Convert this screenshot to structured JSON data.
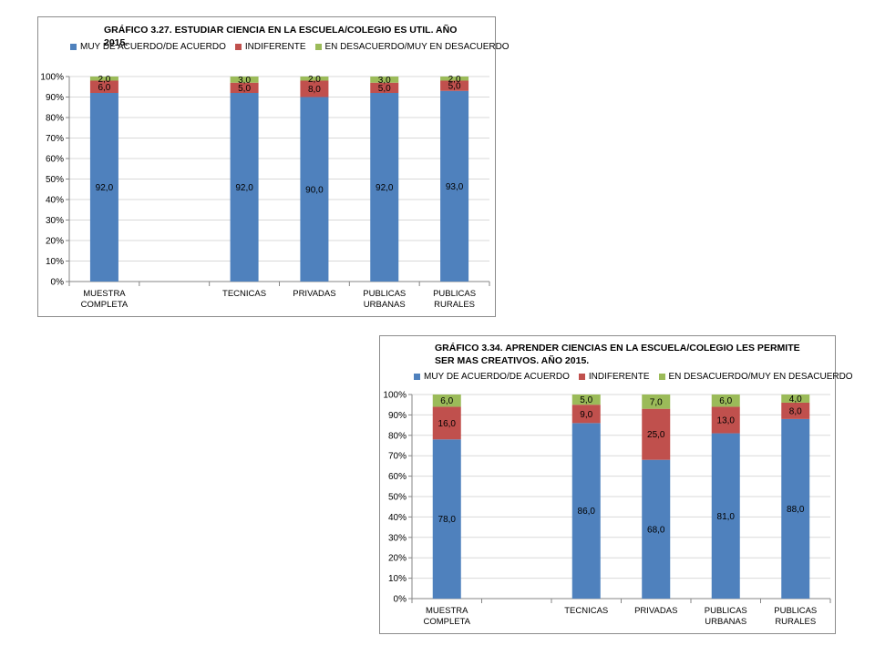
{
  "colors": {
    "muy_de_acuerdo": "#4f81bd",
    "indiferente": "#c0504d",
    "en_desacuerdo": "#9bbb59",
    "grid": "#d9d9d9",
    "axis": "#868686"
  },
  "chart_data": [
    {
      "type": "bar",
      "stacked": true,
      "title": "GRÁFICO 3.27. ESTUDIAR CIENCIA EN LA ESCUELA/COLEGIO ES UTIL. AÑO 2015.",
      "categories": [
        "MUESTRA COMPLETA",
        "",
        "TECNICAS",
        "PRIVADAS",
        "PUBLICAS URBANAS",
        "PUBLICAS RURALES"
      ],
      "series": [
        {
          "name": "MUY DE ACUERDO/DE ACUERDO",
          "values": [
            92,
            null,
            92,
            90,
            92,
            93
          ],
          "labels": [
            "92,0",
            "",
            "92,0",
            "90,0",
            "92,0",
            "93,0"
          ]
        },
        {
          "name": "INDIFERENTE",
          "values": [
            6,
            null,
            5,
            8,
            5,
            5
          ],
          "labels": [
            "6,0",
            "",
            "5,0",
            "8,0",
            "5,0",
            "5,0"
          ]
        },
        {
          "name": "EN DESACUERDO/MUY EN DESACUERDO",
          "values": [
            2,
            null,
            3,
            2,
            3,
            2
          ],
          "labels": [
            "2,0",
            "",
            "3,0",
            "2,0",
            "3,0",
            "2,0"
          ]
        }
      ],
      "yticks": [
        "0%",
        "10%",
        "20%",
        "30%",
        "40%",
        "50%",
        "60%",
        "70%",
        "80%",
        "90%",
        "100%"
      ],
      "ylim": [
        0,
        100
      ],
      "legend": "top"
    },
    {
      "type": "bar",
      "stacked": true,
      "title": "GRÁFICO 3.34. APRENDER CIENCIAS EN LA ESCUELA/COLEGIO LES PERMITE SER MAS CREATIVOS. AÑO 2015.",
      "categories": [
        "MUESTRA COMPLETA",
        "",
        "TECNICAS",
        "PRIVADAS",
        "PUBLICAS URBANAS",
        "PUBLICAS RURALES"
      ],
      "series": [
        {
          "name": "MUY DE ACUERDO/DE ACUERDO",
          "values": [
            78,
            null,
            86,
            68,
            81,
            88
          ],
          "labels": [
            "78,0",
            "",
            "86,0",
            "68,0",
            "81,0",
            "88,0"
          ]
        },
        {
          "name": "INDIFERENTE",
          "values": [
            16,
            null,
            9,
            25,
            13,
            8
          ],
          "labels": [
            "16,0",
            "",
            "9,0",
            "25,0",
            "13,0",
            "8,0"
          ]
        },
        {
          "name": "EN DESACUERDO/MUY EN DESACUERDO",
          "values": [
            6,
            null,
            5,
            7,
            6,
            4
          ],
          "labels": [
            "6,0",
            "",
            "5,0",
            "7,0",
            "6,0",
            "4,0"
          ]
        }
      ],
      "yticks": [
        "0%",
        "10%",
        "20%",
        "30%",
        "40%",
        "50%",
        "60%",
        "70%",
        "80%",
        "90%",
        "100%"
      ],
      "ylim": [
        0,
        100
      ],
      "legend": "top"
    }
  ]
}
